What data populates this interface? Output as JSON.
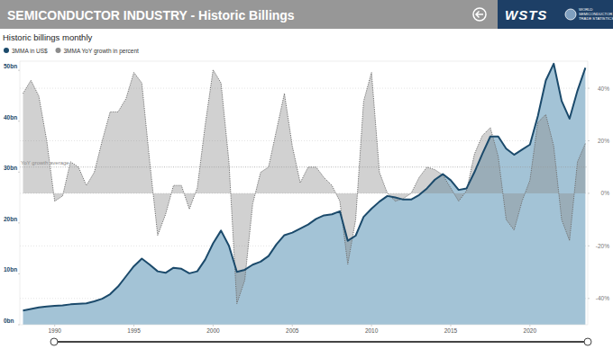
{
  "header": {
    "logo": "WSTS",
    "logo_subtitle": [
      "WORLD",
      "SEMICONDUCTOR",
      "TRADE STATISTICS"
    ]
  },
  "chart_data": {
    "type": "area",
    "title": "SEMICONDUCTOR INDUSTRY - Historic Billings",
    "subtitle": "Historic billings monthly",
    "x": [
      1988,
      1988.5,
      1989,
      1989.5,
      1990,
      1990.5,
      1991,
      1991.5,
      1992,
      1992.5,
      1993,
      1993.5,
      1994,
      1994.5,
      1995,
      1995.5,
      1996,
      1996.5,
      1997,
      1997.5,
      1998,
      1998.5,
      1999,
      1999.5,
      2000,
      2000.5,
      2001,
      2001.5,
      2002,
      2002.5,
      2003,
      2003.5,
      2004,
      2004.5,
      2005,
      2005.5,
      2006,
      2006.5,
      2007,
      2007.5,
      2008,
      2008.5,
      2009,
      2009.5,
      2010,
      2010.5,
      2011,
      2011.5,
      2012,
      2012.5,
      2013,
      2013.5,
      2014,
      2014.5,
      2015,
      2015.5,
      2016,
      2016.5,
      2017,
      2017.5,
      2018,
      2018.5,
      2019,
      2019.5,
      2020,
      2020.5,
      2021,
      2021.5,
      2022,
      2022.5,
      2023,
      2023.5
    ],
    "series": [
      {
        "name": "3MMA in US$",
        "color": "#1b4a6b",
        "type": "area",
        "line_style": "solid",
        "values": [
          2.8,
          3.1,
          3.4,
          3.6,
          3.7,
          3.8,
          4.0,
          4.1,
          4.2,
          4.6,
          5.1,
          6.0,
          7.5,
          9.5,
          11.5,
          13.0,
          11.8,
          10.5,
          10.2,
          11.2,
          11.0,
          10.1,
          10.5,
          12.8,
          16.0,
          18.5,
          15.5,
          10.4,
          10.8,
          11.8,
          12.4,
          13.5,
          15.8,
          17.6,
          18.1,
          18.9,
          19.7,
          20.8,
          21.5,
          21.7,
          22.3,
          16.5,
          17.5,
          21.2,
          22.8,
          24.2,
          25.3,
          25.0,
          24.6,
          24.6,
          25.5,
          26.8,
          28.5,
          29.6,
          28.4,
          26.5,
          26.8,
          30.0,
          33.6,
          37.0,
          37.0,
          34.6,
          33.4,
          34.4,
          35.4,
          41.0,
          48.0,
          51.3,
          44.0,
          40.5,
          46.0,
          50.5
        ]
      },
      {
        "name": "3MMA YoY growth in percent",
        "color": "#8c8c8c",
        "type": "area",
        "line_style": "dotted",
        "axis": "y2",
        "values": [
          38,
          43,
          37,
          20,
          -3,
          -1,
          12,
          10,
          3,
          8,
          20,
          31,
          31,
          36,
          46,
          42,
          12,
          -16,
          -8,
          3,
          3,
          -6,
          2,
          26,
          47,
          42,
          12,
          -42,
          -33,
          -4,
          8,
          10,
          24,
          38,
          18,
          4,
          10,
          10,
          6,
          3,
          -3,
          -27,
          -10,
          35,
          46,
          8,
          0,
          -3,
          -2,
          0,
          6,
          10,
          9,
          7,
          2,
          -3,
          1,
          15,
          22,
          25,
          14,
          -10,
          -14,
          -3,
          5,
          27,
          30,
          18,
          -10,
          -18,
          12,
          19
        ]
      }
    ],
    "xlim": [
      1987.8,
      2023.65
    ],
    "xticks": [
      1990,
      1995,
      2000,
      2005,
      2010,
      2015,
      2020
    ],
    "ylim": [
      0,
      51.8
    ],
    "yticks": [
      {
        "value": 0,
        "label": "0bn"
      },
      {
        "value": 10,
        "label": "10bn"
      },
      {
        "value": 20,
        "label": "20bn"
      },
      {
        "value": 30,
        "label": "30bn"
      },
      {
        "value": 40,
        "label": "40bn"
      },
      {
        "value": 50,
        "label": "50bn"
      }
    ],
    "y2lim": [
      -50,
      50.3
    ],
    "y2ticks": [
      {
        "value": -40,
        "label": "-40%"
      },
      {
        "value": -20,
        "label": "-20%"
      },
      {
        "value": 0,
        "label": "0%"
      },
      {
        "value": 20,
        "label": "20%"
      },
      {
        "value": 40,
        "label": "40%"
      }
    ],
    "annotations": [
      {
        "text": "YoY growth average",
        "value": 10,
        "axis": "y2"
      }
    ],
    "grid": true,
    "legend": "top-left"
  }
}
